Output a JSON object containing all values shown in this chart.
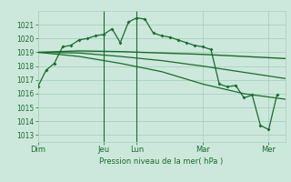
{
  "background_color": "#cce8dc",
  "plot_bg_color": "#cce8dc",
  "grid_color": "#aacfbf",
  "line_color": "#1a6b2a",
  "vline_color": "#1a6b2a",
  "xtick_labels": [
    "Dim",
    "Jeu",
    "Lun",
    "Mar",
    "Mer"
  ],
  "xtick_positions": [
    0,
    48,
    72,
    120,
    168
  ],
  "xlabel": "Pression niveau de la mer( hPa )",
  "ylim": [
    1012.5,
    1022.0
  ],
  "yticks": [
    1013,
    1014,
    1015,
    1016,
    1017,
    1018,
    1019,
    1020,
    1021
  ],
  "total_hours": 180,
  "line1_x": [
    0,
    6,
    12,
    18,
    24,
    30,
    36,
    42,
    48,
    54,
    60,
    66,
    72,
    78,
    84,
    90,
    96,
    102,
    108,
    114,
    120,
    126,
    132,
    138,
    144,
    150,
    156,
    162,
    168,
    174
  ],
  "line1_y": [
    1016.5,
    1017.7,
    1018.2,
    1019.4,
    1019.5,
    1019.9,
    1020.0,
    1020.2,
    1020.3,
    1020.7,
    1019.7,
    1021.2,
    1021.5,
    1021.4,
    1020.4,
    1020.2,
    1020.1,
    1019.9,
    1019.7,
    1019.5,
    1019.4,
    1019.2,
    1016.7,
    1016.5,
    1016.6,
    1015.7,
    1015.9,
    1013.7,
    1013.4,
    1015.9
  ],
  "line2_x": [
    0,
    30,
    60,
    90,
    120,
    150,
    180
  ],
  "line2_y": [
    1019.0,
    1019.1,
    1019.05,
    1018.95,
    1018.85,
    1018.7,
    1018.55
  ],
  "line3_x": [
    0,
    30,
    60,
    90,
    120,
    150,
    180
  ],
  "line3_y": [
    1019.0,
    1018.95,
    1018.7,
    1018.4,
    1018.0,
    1017.55,
    1017.1
  ],
  "line4_x": [
    0,
    30,
    60,
    90,
    120,
    150,
    180
  ],
  "line4_y": [
    1019.0,
    1018.7,
    1018.2,
    1017.6,
    1016.7,
    1016.0,
    1015.6
  ],
  "vline_positions": [
    48,
    72
  ],
  "figsize": [
    3.2,
    2.0
  ],
  "dpi": 100
}
